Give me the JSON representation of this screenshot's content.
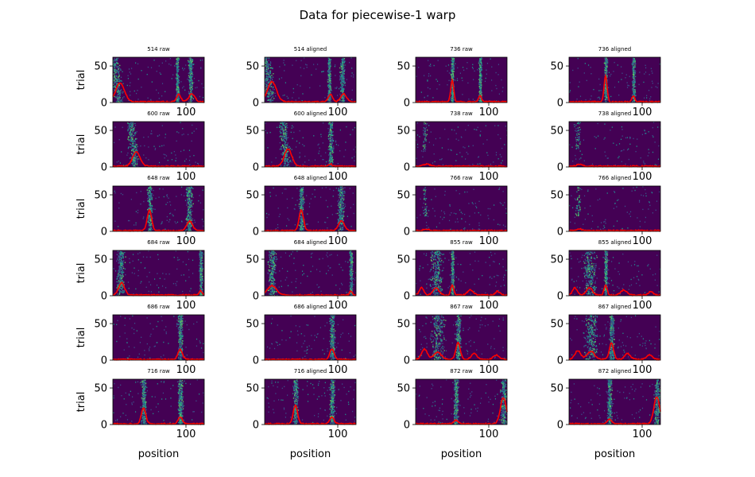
{
  "figure": {
    "title": "Data for piecewise-1 warp"
  },
  "colors": {
    "bg": "#440154",
    "heat": [
      "#440154",
      "#3b528b",
      "#21918c",
      "#5ec962"
    ],
    "trace": "#ff0000"
  },
  "chart_data": {
    "type": "heatmap",
    "grid": {
      "rows": 6,
      "cols": 4
    },
    "xlim": [
      0,
      125
    ],
    "ylim": [
      0,
      62
    ],
    "yticks": [
      0,
      50
    ],
    "xticks": [
      100
    ],
    "xlabel": "position",
    "ylabel": "trial",
    "overlay": "line",
    "panels": [
      {
        "title": "514 raw",
        "peaks": [
          [
            10,
            26,
            6
          ],
          [
            90,
            10,
            3
          ],
          [
            108,
            11,
            4
          ]
        ],
        "bands": [
          [
            8,
            6,
            "slant"
          ],
          [
            88,
            2,
            "full"
          ],
          [
            106,
            3,
            "full"
          ]
        ]
      },
      {
        "title": "514 aligned",
        "peaks": [
          [
            10,
            28,
            6
          ],
          [
            90,
            10,
            3
          ],
          [
            108,
            11,
            4
          ]
        ],
        "bands": [
          [
            8,
            6,
            "slant"
          ],
          [
            88,
            2,
            "full"
          ],
          [
            106,
            3,
            "full"
          ]
        ]
      },
      {
        "title": "736 raw",
        "peaks": [
          [
            50,
            30,
            2
          ],
          [
            88,
            9,
            2
          ]
        ],
        "bands": [
          [
            50,
            2,
            "full"
          ],
          [
            88,
            2,
            "full"
          ]
        ]
      },
      {
        "title": "736 aligned",
        "peaks": [
          [
            50,
            36,
            2
          ],
          [
            88,
            8,
            2
          ]
        ],
        "bands": [
          [
            50,
            2,
            "full"
          ],
          [
            88,
            2,
            "full"
          ]
        ]
      },
      {
        "title": "600 raw",
        "peaks": [
          [
            32,
            20,
            5
          ]
        ],
        "bands": [
          [
            30,
            5,
            "slant"
          ]
        ]
      },
      {
        "title": "600 aligned",
        "peaks": [
          [
            32,
            24,
            5
          ],
          [
            90,
            3,
            2
          ]
        ],
        "bands": [
          [
            30,
            5,
            "slant"
          ],
          [
            90,
            3,
            "full"
          ]
        ]
      },
      {
        "title": "738 raw",
        "peaks": [
          [
            15,
            3,
            4
          ]
        ],
        "bands": [
          [
            12,
            3,
            "sparse"
          ]
        ]
      },
      {
        "title": "738 aligned",
        "peaks": [
          [
            15,
            3,
            4
          ]
        ],
        "bands": [
          [
            12,
            3,
            "sparse"
          ]
        ]
      },
      {
        "title": "648 raw",
        "peaks": [
          [
            50,
            28,
            3
          ],
          [
            105,
            13,
            4
          ]
        ],
        "bands": [
          [
            50,
            3,
            "full"
          ],
          [
            104,
            4,
            "full"
          ]
        ]
      },
      {
        "title": "648 aligned",
        "peaks": [
          [
            50,
            28,
            3
          ],
          [
            105,
            14,
            4
          ]
        ],
        "bands": [
          [
            50,
            3,
            "full"
          ],
          [
            104,
            4,
            "full"
          ]
        ]
      },
      {
        "title": "766 raw",
        "peaks": [
          [
            15,
            2,
            4
          ]
        ],
        "bands": [
          [
            12,
            3,
            "sparse"
          ]
        ]
      },
      {
        "title": "766 aligned",
        "peaks": [
          [
            15,
            2,
            4
          ]
        ],
        "bands": [
          [
            12,
            3,
            "sparse"
          ]
        ]
      },
      {
        "title": "684 raw",
        "peaks": [
          [
            12,
            17,
            4
          ],
          [
            120,
            6,
            2
          ]
        ],
        "bands": [
          [
            10,
            5,
            "full"
          ],
          [
            120,
            2,
            "full"
          ]
        ]
      },
      {
        "title": "684 aligned",
        "peaks": [
          [
            10,
            13,
            6
          ],
          [
            118,
            5,
            2
          ]
        ],
        "bands": [
          [
            10,
            5,
            "full"
          ],
          [
            118,
            2,
            "full"
          ]
        ]
      },
      {
        "title": "855 raw",
        "peaks": [
          [
            8,
            10,
            3
          ],
          [
            28,
            10,
            4
          ],
          [
            50,
            14,
            2
          ],
          [
            75,
            7,
            4
          ],
          [
            112,
            5,
            3
          ]
        ],
        "bands": [
          [
            28,
            8,
            "full"
          ],
          [
            50,
            2,
            "full"
          ]
        ]
      },
      {
        "title": "855 aligned",
        "peaks": [
          [
            8,
            10,
            3
          ],
          [
            28,
            10,
            4
          ],
          [
            50,
            14,
            2
          ],
          [
            75,
            7,
            4
          ],
          [
            112,
            5,
            3
          ]
        ],
        "bands": [
          [
            28,
            8,
            "full"
          ],
          [
            50,
            2,
            "full"
          ]
        ]
      },
      {
        "title": "686 raw",
        "peaks": [
          [
            92,
            14,
            3
          ]
        ],
        "bands": [
          [
            92,
            3,
            "full"
          ]
        ]
      },
      {
        "title": "686 aligned",
        "peaks": [
          [
            92,
            14,
            3
          ]
        ],
        "bands": [
          [
            92,
            3,
            "full"
          ]
        ]
      },
      {
        "title": "867 raw",
        "peaks": [
          [
            12,
            14,
            4
          ],
          [
            30,
            10,
            5
          ],
          [
            58,
            23,
            3
          ],
          [
            80,
            8,
            4
          ],
          [
            110,
            6,
            4
          ]
        ],
        "bands": [
          [
            30,
            8,
            "full"
          ],
          [
            58,
            3,
            "full"
          ]
        ]
      },
      {
        "title": "867 aligned",
        "peaks": [
          [
            12,
            12,
            4
          ],
          [
            30,
            11,
            5
          ],
          [
            58,
            22,
            3
          ],
          [
            80,
            8,
            4
          ],
          [
            110,
            6,
            4
          ]
        ],
        "bands": [
          [
            30,
            8,
            "full"
          ],
          [
            58,
            3,
            "full"
          ]
        ]
      },
      {
        "title": "716 raw",
        "peaks": [
          [
            42,
            22,
            3
          ],
          [
            92,
            9,
            3
          ]
        ],
        "bands": [
          [
            42,
            3,
            "full"
          ],
          [
            92,
            3,
            "full"
          ]
        ]
      },
      {
        "title": "716 aligned",
        "peaks": [
          [
            42,
            25,
            3
          ],
          [
            92,
            9,
            3
          ]
        ],
        "bands": [
          [
            42,
            3,
            "full"
          ],
          [
            92,
            3,
            "full"
          ]
        ]
      },
      {
        "title": "872 raw",
        "peaks": [
          [
            55,
            5,
            3
          ],
          [
            120,
            36,
            4
          ]
        ],
        "bands": [
          [
            55,
            3,
            "full"
          ],
          [
            120,
            4,
            "full"
          ]
        ]
      },
      {
        "title": "872 aligned",
        "peaks": [
          [
            55,
            6,
            3
          ],
          [
            120,
            37,
            4
          ]
        ],
        "bands": [
          [
            55,
            3,
            "full"
          ],
          [
            120,
            4,
            "full"
          ]
        ]
      }
    ]
  }
}
